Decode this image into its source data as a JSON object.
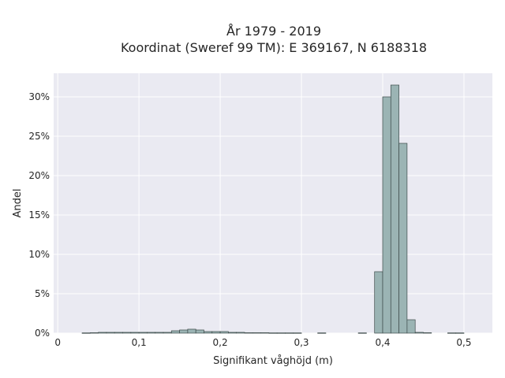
{
  "chart_data": {
    "type": "bar",
    "title_line1": "År 1979 - 2019",
    "title_line2": "Koordinat (Sweref 99 TM): E 369167, N 6188318",
    "xlabel": "Signifikant våghöjd (m)",
    "ylabel": "Andel",
    "xlim": [
      -0.005,
      0.535
    ],
    "ylim": [
      0,
      0.33
    ],
    "x_ticks": [
      {
        "value": 0,
        "label": "0"
      },
      {
        "value": 0.1,
        "label": "0,1"
      },
      {
        "value": 0.2,
        "label": "0,2"
      },
      {
        "value": 0.3,
        "label": "0,3"
      },
      {
        "value": 0.4,
        "label": "0,4"
      },
      {
        "value": 0.5,
        "label": "0,5"
      }
    ],
    "y_ticks": [
      {
        "value": 0,
        "label": "0%"
      },
      {
        "value": 0.05,
        "label": "5%"
      },
      {
        "value": 0.1,
        "label": "10%"
      },
      {
        "value": 0.15,
        "label": "15%"
      },
      {
        "value": 0.2,
        "label": "20%"
      },
      {
        "value": 0.25,
        "label": "25%"
      },
      {
        "value": 0.3,
        "label": "30%"
      }
    ],
    "grid": true,
    "bin_width": 0.01,
    "bins": [
      {
        "x0": 0.03,
        "value": 0.0003
      },
      {
        "x0": 0.04,
        "value": 0.0005
      },
      {
        "x0": 0.05,
        "value": 0.001
      },
      {
        "x0": 0.06,
        "value": 0.001
      },
      {
        "x0": 0.07,
        "value": 0.001
      },
      {
        "x0": 0.08,
        "value": 0.001
      },
      {
        "x0": 0.09,
        "value": 0.001
      },
      {
        "x0": 0.1,
        "value": 0.001
      },
      {
        "x0": 0.11,
        "value": 0.001
      },
      {
        "x0": 0.12,
        "value": 0.001
      },
      {
        "x0": 0.13,
        "value": 0.001
      },
      {
        "x0": 0.14,
        "value": 0.003
      },
      {
        "x0": 0.15,
        "value": 0.004
      },
      {
        "x0": 0.16,
        "value": 0.005
      },
      {
        "x0": 0.17,
        "value": 0.004
      },
      {
        "x0": 0.18,
        "value": 0.002
      },
      {
        "x0": 0.19,
        "value": 0.002
      },
      {
        "x0": 0.2,
        "value": 0.002
      },
      {
        "x0": 0.21,
        "value": 0.001
      },
      {
        "x0": 0.22,
        "value": 0.001
      },
      {
        "x0": 0.23,
        "value": 0.0005
      },
      {
        "x0": 0.24,
        "value": 0.0005
      },
      {
        "x0": 0.25,
        "value": 0.0005
      },
      {
        "x0": 0.26,
        "value": 0.0003
      },
      {
        "x0": 0.27,
        "value": 0.0003
      },
      {
        "x0": 0.28,
        "value": 0.0003
      },
      {
        "x0": 0.29,
        "value": 0.0003
      },
      {
        "x0": 0.32,
        "value": 0.0003
      },
      {
        "x0": 0.37,
        "value": 0.0003
      },
      {
        "x0": 0.39,
        "value": 0.078
      },
      {
        "x0": 0.4,
        "value": 0.3
      },
      {
        "x0": 0.41,
        "value": 0.315
      },
      {
        "x0": 0.42,
        "value": 0.241
      },
      {
        "x0": 0.43,
        "value": 0.017
      },
      {
        "x0": 0.44,
        "value": 0.001
      },
      {
        "x0": 0.45,
        "value": 0.0005
      },
      {
        "x0": 0.48,
        "value": 0.0003
      },
      {
        "x0": 0.49,
        "value": 0.0003
      }
    ],
    "colors": {
      "bar_fill": "#9bb4b4",
      "bar_stroke": "#3d4a4a",
      "plot_bg": "#eaeaf2",
      "grid": "#ffffff"
    }
  }
}
